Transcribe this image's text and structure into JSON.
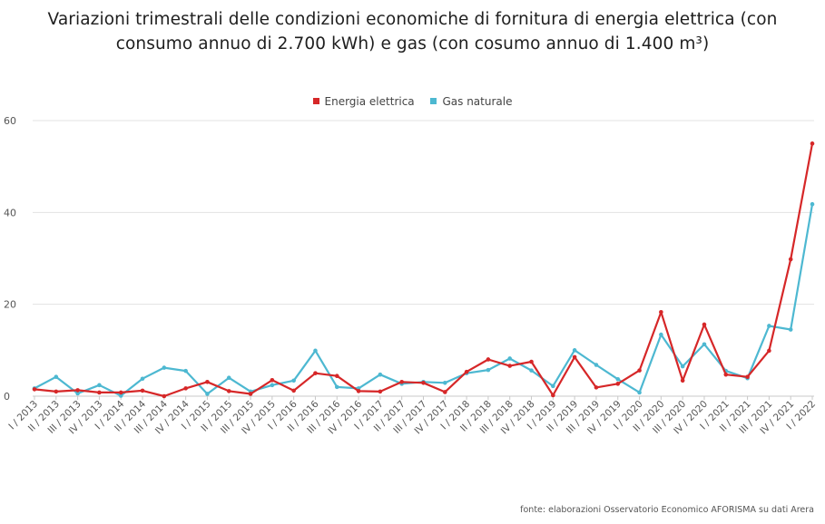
{
  "chart_data": {
    "type": "line",
    "title_line1": "Variazioni trimestrali delle condizioni economiche di fornitura di energia elettrica (con",
    "title_line2": "consumo annuo di 2.700 kWh) e gas (con cosumo annuo di 1.400 m³)",
    "xlabel": "",
    "ylabel": "",
    "ylim": [
      0,
      60
    ],
    "y_ticks": [
      0,
      20,
      40,
      60
    ],
    "grid": true,
    "legend_position": "top-center",
    "categories": [
      "I / 2013",
      "II / 2013",
      "III / 2013",
      "IV / 2013",
      "I / 2014",
      "II / 2014",
      "III / 2014",
      "IV / 2014",
      "I / 2015",
      "II / 2015",
      "III / 2015",
      "IV / 2015",
      "I / 2016",
      "II / 2016",
      "III / 2016",
      "IV / 2016",
      "I / 2017",
      "II / 2017",
      "III / 2017",
      "IV / 2017",
      "I / 2018",
      "II / 2018",
      "III / 2018",
      "IV / 2018",
      "I / 2019",
      "II / 2019",
      "III / 2019",
      "IV / 2019",
      "I / 2020",
      "II / 2020",
      "III / 2020",
      "IV / 2020",
      "I / 2021",
      "II / 2021",
      "III / 2021",
      "IV / 2021",
      "I / 2022"
    ],
    "series": [
      {
        "name": "Energia elettrica",
        "color": "#d62728",
        "values": [
          1.5,
          1.0,
          1.3,
          0.8,
          0.8,
          1.2,
          0.0,
          1.7,
          3.1,
          1.1,
          0.5,
          3.5,
          1.2,
          5.0,
          4.4,
          1.1,
          1.0,
          3.1,
          2.9,
          0.9,
          5.3,
          8.0,
          6.6,
          7.5,
          0.2,
          8.5,
          1.9,
          2.7,
          5.6,
          18.3,
          3.4,
          15.6,
          4.7,
          4.2,
          9.9,
          29.8,
          55.0
        ]
      },
      {
        "name": "Gas naturale",
        "color": "#4db8d1",
        "values": [
          1.7,
          4.2,
          0.6,
          2.4,
          0.1,
          3.8,
          6.2,
          5.5,
          0.5,
          4.0,
          1.0,
          2.4,
          3.4,
          9.9,
          2.0,
          1.7,
          4.7,
          2.7,
          3.1,
          2.9,
          5.0,
          5.7,
          8.2,
          5.6,
          2.2,
          10.0,
          6.8,
          3.7,
          0.8,
          13.4,
          6.5,
          11.3,
          5.5,
          3.9,
          15.3,
          14.5,
          41.8
        ]
      }
    ]
  },
  "source": "fonte: elaborazioni Osservatorio Economico AFORISMA su dati Arera"
}
